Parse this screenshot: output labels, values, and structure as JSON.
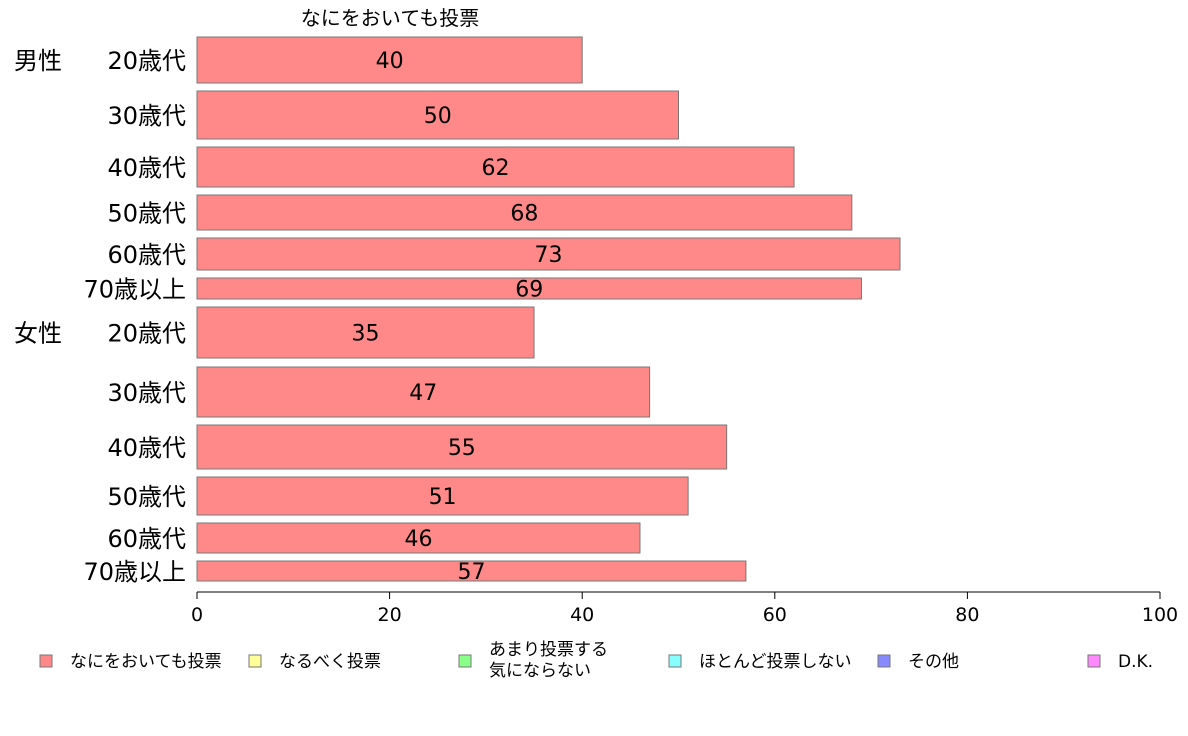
{
  "chart_data": {
    "type": "bar",
    "orientation": "horizontal",
    "series_title": "なにをおいても投票",
    "groups": [
      {
        "label": "男性",
        "categories": [
          "20歳代",
          "30歳代",
          "40歳代",
          "50歳代",
          "60歳代",
          "70歳以上"
        ],
        "values": [
          40,
          50,
          62,
          68,
          73,
          69
        ]
      },
      {
        "label": "女性",
        "categories": [
          "20歳代",
          "30歳代",
          "40歳代",
          "50歳代",
          "60歳代",
          "70歳以上"
        ],
        "values": [
          35,
          47,
          55,
          51,
          46,
          57
        ]
      }
    ],
    "xlim": [
      0,
      100
    ],
    "xticks": [
      0,
      20,
      40,
      60,
      80,
      100
    ],
    "grid": false,
    "legend_position": "bottom",
    "legend": [
      {
        "name": "なにをおいても投票",
        "color": "#ff8888"
      },
      {
        "name": "なるべく投票",
        "color": "#ffff99"
      },
      {
        "name": "あまり投票する\n気にならない",
        "color": "#88ff88"
      },
      {
        "name": "ほとんど投票しない",
        "color": "#88ffff"
      },
      {
        "name": "その他",
        "color": "#8888ff"
      },
      {
        "name": "D.K.",
        "color": "#ff88ff"
      }
    ],
    "bar_color": "#ff8888",
    "bar_stroke": "#777777"
  }
}
